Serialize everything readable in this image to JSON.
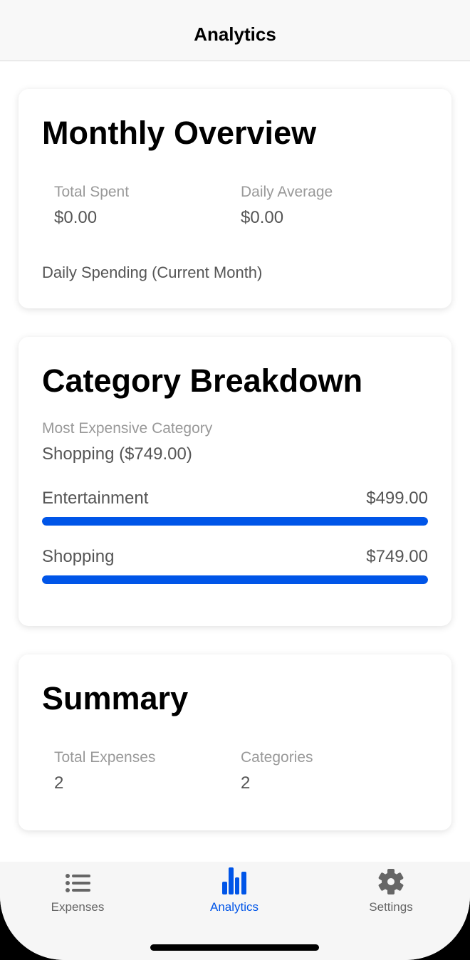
{
  "header": {
    "title": "Analytics"
  },
  "monthly": {
    "title": "Monthly Overview",
    "total_spent_label": "Total Spent",
    "total_spent": "$0.00",
    "daily_avg_label": "Daily Average",
    "daily_avg": "$0.00",
    "chart_label": "Daily Spending (Current Month)"
  },
  "category": {
    "title": "Category Breakdown",
    "most_label": "Most Expensive Category",
    "most_value": "Shopping ($749.00)",
    "items": [
      {
        "name": "Entertainment",
        "amount": "$499.00",
        "fill_percent": 100
      },
      {
        "name": "Shopping",
        "amount": "$749.00",
        "fill_percent": 100
      }
    ]
  },
  "summary": {
    "title": "Summary",
    "total_label": "Total Expenses",
    "total": "2",
    "categories_label": "Categories",
    "categories": "2"
  },
  "tabs": [
    {
      "label": "Expenses",
      "icon": "list-icon"
    },
    {
      "label": "Analytics",
      "icon": "bar-chart-icon",
      "active": true
    },
    {
      "label": "Settings",
      "icon": "gear-icon"
    }
  ],
  "colors": {
    "accent": "#0055e8",
    "inactive": "#666666"
  }
}
